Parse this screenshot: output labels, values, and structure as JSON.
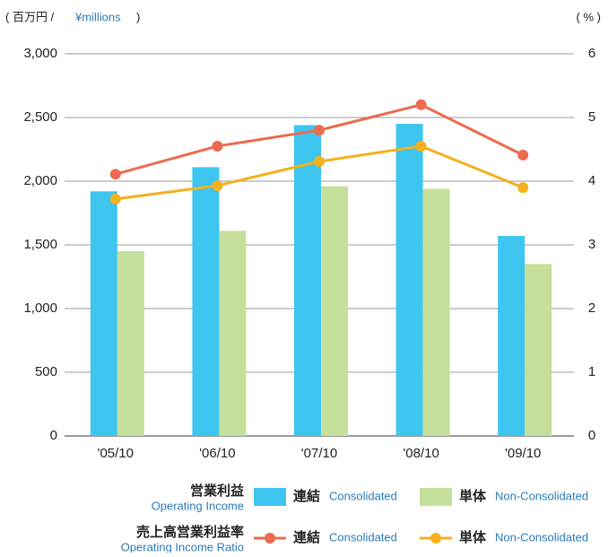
{
  "chart_data": {
    "type": "bar",
    "y_unit": {
      "open": "( 百万円 /",
      "en": "¥millions",
      "close": ")"
    },
    "y2_unit": "( % )",
    "categories": [
      "'05/10",
      "'06/10",
      "'07/10",
      "'08/10",
      "'09/10"
    ],
    "ylim": [
      0,
      3000
    ],
    "yticks": [
      0,
      500,
      {
        "value": 1000,
        "label": "1,000"
      },
      {
        "value": 1500,
        "label": "1,500"
      },
      {
        "value": 2000,
        "label": "2,000"
      },
      {
        "value": 2500,
        "label": "2,500"
      },
      {
        "value": 3000,
        "label": "3,000"
      }
    ],
    "y2lim": [
      0,
      6
    ],
    "y2ticks": [
      0,
      1,
      2,
      3,
      4,
      5,
      6
    ],
    "grid": true,
    "legend_groups": [
      {
        "label": "営業利益",
        "label_en": "Operating Income"
      },
      {
        "label": "売上高営業利益率",
        "label_en": "Operating Income Ratio"
      }
    ],
    "series": [
      {
        "name": "連結",
        "name_en": "Consolidated",
        "type": "bar",
        "color": "#3ec5f0",
        "values": [
          1920,
          2110,
          2440,
          2450,
          1570
        ]
      },
      {
        "name": "単体",
        "name_en": "Non-Consolidated",
        "type": "bar",
        "color": "#c5e09b",
        "values": [
          1450,
          1610,
          1960,
          1940,
          1350
        ]
      },
      {
        "name": "連結",
        "name_en": "Consolidated",
        "type": "line",
        "axis": "y2",
        "color": "#ec6a4f",
        "values": [
          4.11,
          4.55,
          4.8,
          5.2,
          4.41
        ]
      },
      {
        "name": "単体",
        "name_en": "Non-Consolidated",
        "type": "line",
        "axis": "y2",
        "color": "#f5b01e",
        "values": [
          3.72,
          3.93,
          4.31,
          4.55,
          3.9
        ]
      }
    ]
  }
}
